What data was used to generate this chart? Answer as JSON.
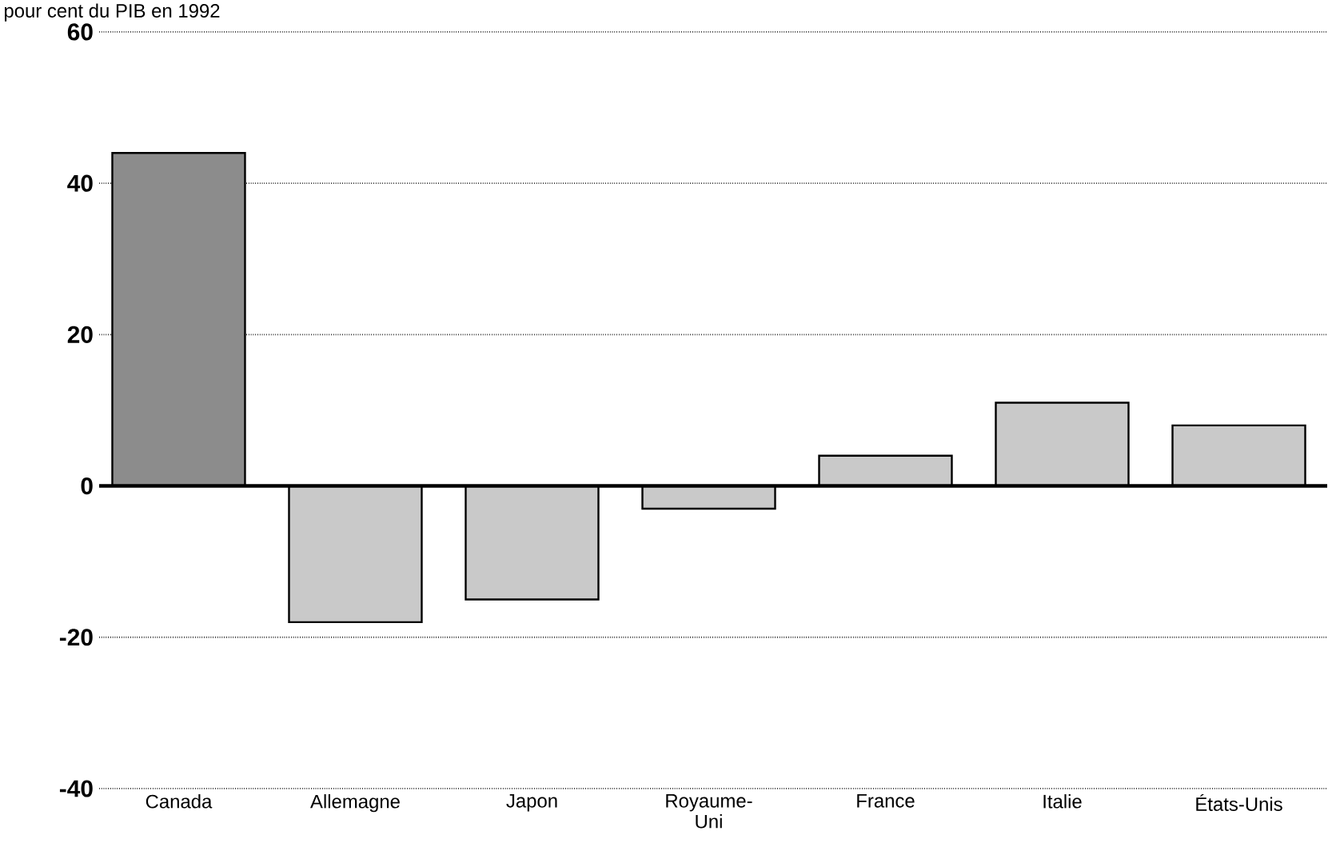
{
  "chart_data": {
    "type": "bar",
    "title": "pour cent du PIB en 1992",
    "categories": [
      "Canada",
      "Allemagne",
      "Japon",
      "Royaume-Uni",
      "France",
      "Italie",
      "États-Unis"
    ],
    "values": [
      44,
      -18,
      -15,
      -3,
      4,
      11,
      8
    ],
    "colors": [
      "#8c8c8c",
      "#c9c9c9",
      "#c9c9c9",
      "#c9c9c9",
      "#c9c9c9",
      "#c9c9c9",
      "#c9c9c9"
    ],
    "ylim": [
      -40,
      60
    ],
    "yticks": [
      -40,
      -20,
      0,
      20,
      40,
      60
    ],
    "grid": "y"
  }
}
